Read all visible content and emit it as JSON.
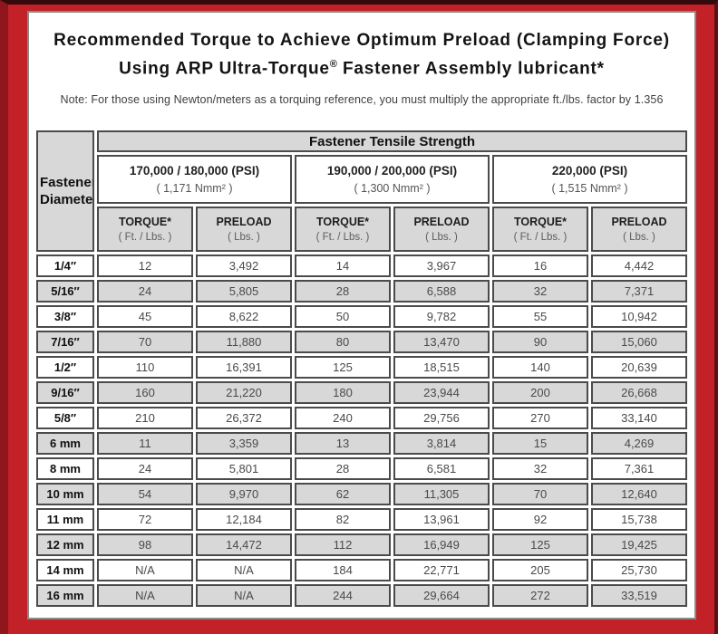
{
  "title": {
    "line1": "Recommended Torque to Achieve Optimum Preload (Clamping Force)",
    "line2_before_reg": "Using ARP Ultra-Torque",
    "line2_reg_mark": "®",
    "line2_after_reg": " Fastener Assembly lubricant*"
  },
  "note": "Note: For those using Newton/meters as a torquing reference, you must multiply the appropriate ft./lbs. factor by 1.356",
  "colors": {
    "frame_red": "#c32128",
    "frame_dark_left": "#8e161c",
    "frame_dark_top": "#340a0c",
    "cell_gray": "#d8d8d8",
    "cell_border": "#4b4b4d"
  },
  "table": {
    "tensile_strength_header": "Fastener Tensile Strength",
    "corner_header_line1": "Fastener",
    "corner_header_line2": "Diameter",
    "groups": [
      {
        "psi": "170,000 / 180,000 (PSI)",
        "nmm": "( 1,171 Nmm² )"
      },
      {
        "psi": "190,000 / 200,000 (PSI)",
        "nmm": "( 1,300 Nmm² )"
      },
      {
        "psi": "220,000 (PSI)",
        "nmm": "( 1,515 Nmm² )"
      }
    ],
    "torque_label": "TORQUE*",
    "torque_units": "( Ft. / Lbs. )",
    "preload_label": "PRELOAD",
    "preload_units": "( Lbs. )",
    "rows": [
      {
        "label": "1/4″",
        "values": [
          "12",
          "3,492",
          "14",
          "3,967",
          "16",
          "4,442"
        ]
      },
      {
        "label": "5/16″",
        "values": [
          "24",
          "5,805",
          "28",
          "6,588",
          "32",
          "7,371"
        ]
      },
      {
        "label": "3/8″",
        "values": [
          "45",
          "8,622",
          "50",
          "9,782",
          "55",
          "10,942"
        ]
      },
      {
        "label": "7/16″",
        "values": [
          "70",
          "11,880",
          "80",
          "13,470",
          "90",
          "15,060"
        ]
      },
      {
        "label": "1/2″",
        "values": [
          "110",
          "16,391",
          "125",
          "18,515",
          "140",
          "20,639"
        ]
      },
      {
        "label": "9/16″",
        "values": [
          "160",
          "21,220",
          "180",
          "23,944",
          "200",
          "26,668"
        ]
      },
      {
        "label": "5/8″",
        "values": [
          "210",
          "26,372",
          "240",
          "29,756",
          "270",
          "33,140"
        ]
      },
      {
        "label": "6 mm",
        "values": [
          "11",
          "3,359",
          "13",
          "3,814",
          "15",
          "4,269"
        ]
      },
      {
        "label": "8 mm",
        "values": [
          "24",
          "5,801",
          "28",
          "6,581",
          "32",
          "7,361"
        ]
      },
      {
        "label": "10 mm",
        "values": [
          "54",
          "9,970",
          "62",
          "11,305",
          "70",
          "12,640"
        ]
      },
      {
        "label": "11 mm",
        "values": [
          "72",
          "12,184",
          "82",
          "13,961",
          "92",
          "15,738"
        ]
      },
      {
        "label": "12 mm",
        "values": [
          "98",
          "14,472",
          "112",
          "16,949",
          "125",
          "19,425"
        ]
      },
      {
        "label": "14 mm",
        "values": [
          "N/A",
          "N/A",
          "184",
          "22,771",
          "205",
          "25,730"
        ]
      },
      {
        "label": "16 mm",
        "values": [
          "N/A",
          "N/A",
          "244",
          "29,664",
          "272",
          "33,519"
        ]
      }
    ]
  }
}
